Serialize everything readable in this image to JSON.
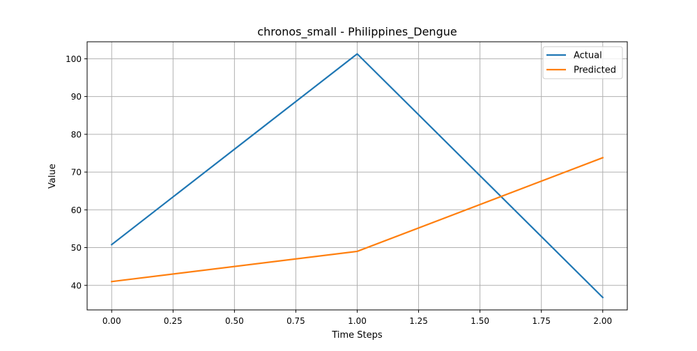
{
  "chart_data": {
    "type": "line",
    "title": "chronos_small - Philippines_Dengue",
    "xlabel": "Time Steps",
    "ylabel": "Value",
    "x": [
      0,
      1,
      2
    ],
    "xlim": [
      -0.1,
      2.1
    ],
    "ylim": [
      33.5,
      104.5
    ],
    "xticks": [
      "0.00",
      "0.25",
      "0.50",
      "0.75",
      "1.00",
      "1.25",
      "1.50",
      "1.75",
      "2.00"
    ],
    "xtick_values": [
      0,
      0.25,
      0.5,
      0.75,
      1.0,
      1.25,
      1.5,
      1.75,
      2.0
    ],
    "yticks": [
      "40",
      "50",
      "60",
      "70",
      "80",
      "90",
      "100"
    ],
    "ytick_values": [
      40,
      50,
      60,
      70,
      80,
      90,
      100
    ],
    "grid": true,
    "legend_position": "top-right",
    "series": [
      {
        "name": "Actual",
        "color": "#1f77b4",
        "values": [
          50.8,
          101.3,
          36.8
        ]
      },
      {
        "name": "Predicted",
        "color": "#ff7f0e",
        "values": [
          41.0,
          49.0,
          73.8
        ]
      }
    ]
  }
}
